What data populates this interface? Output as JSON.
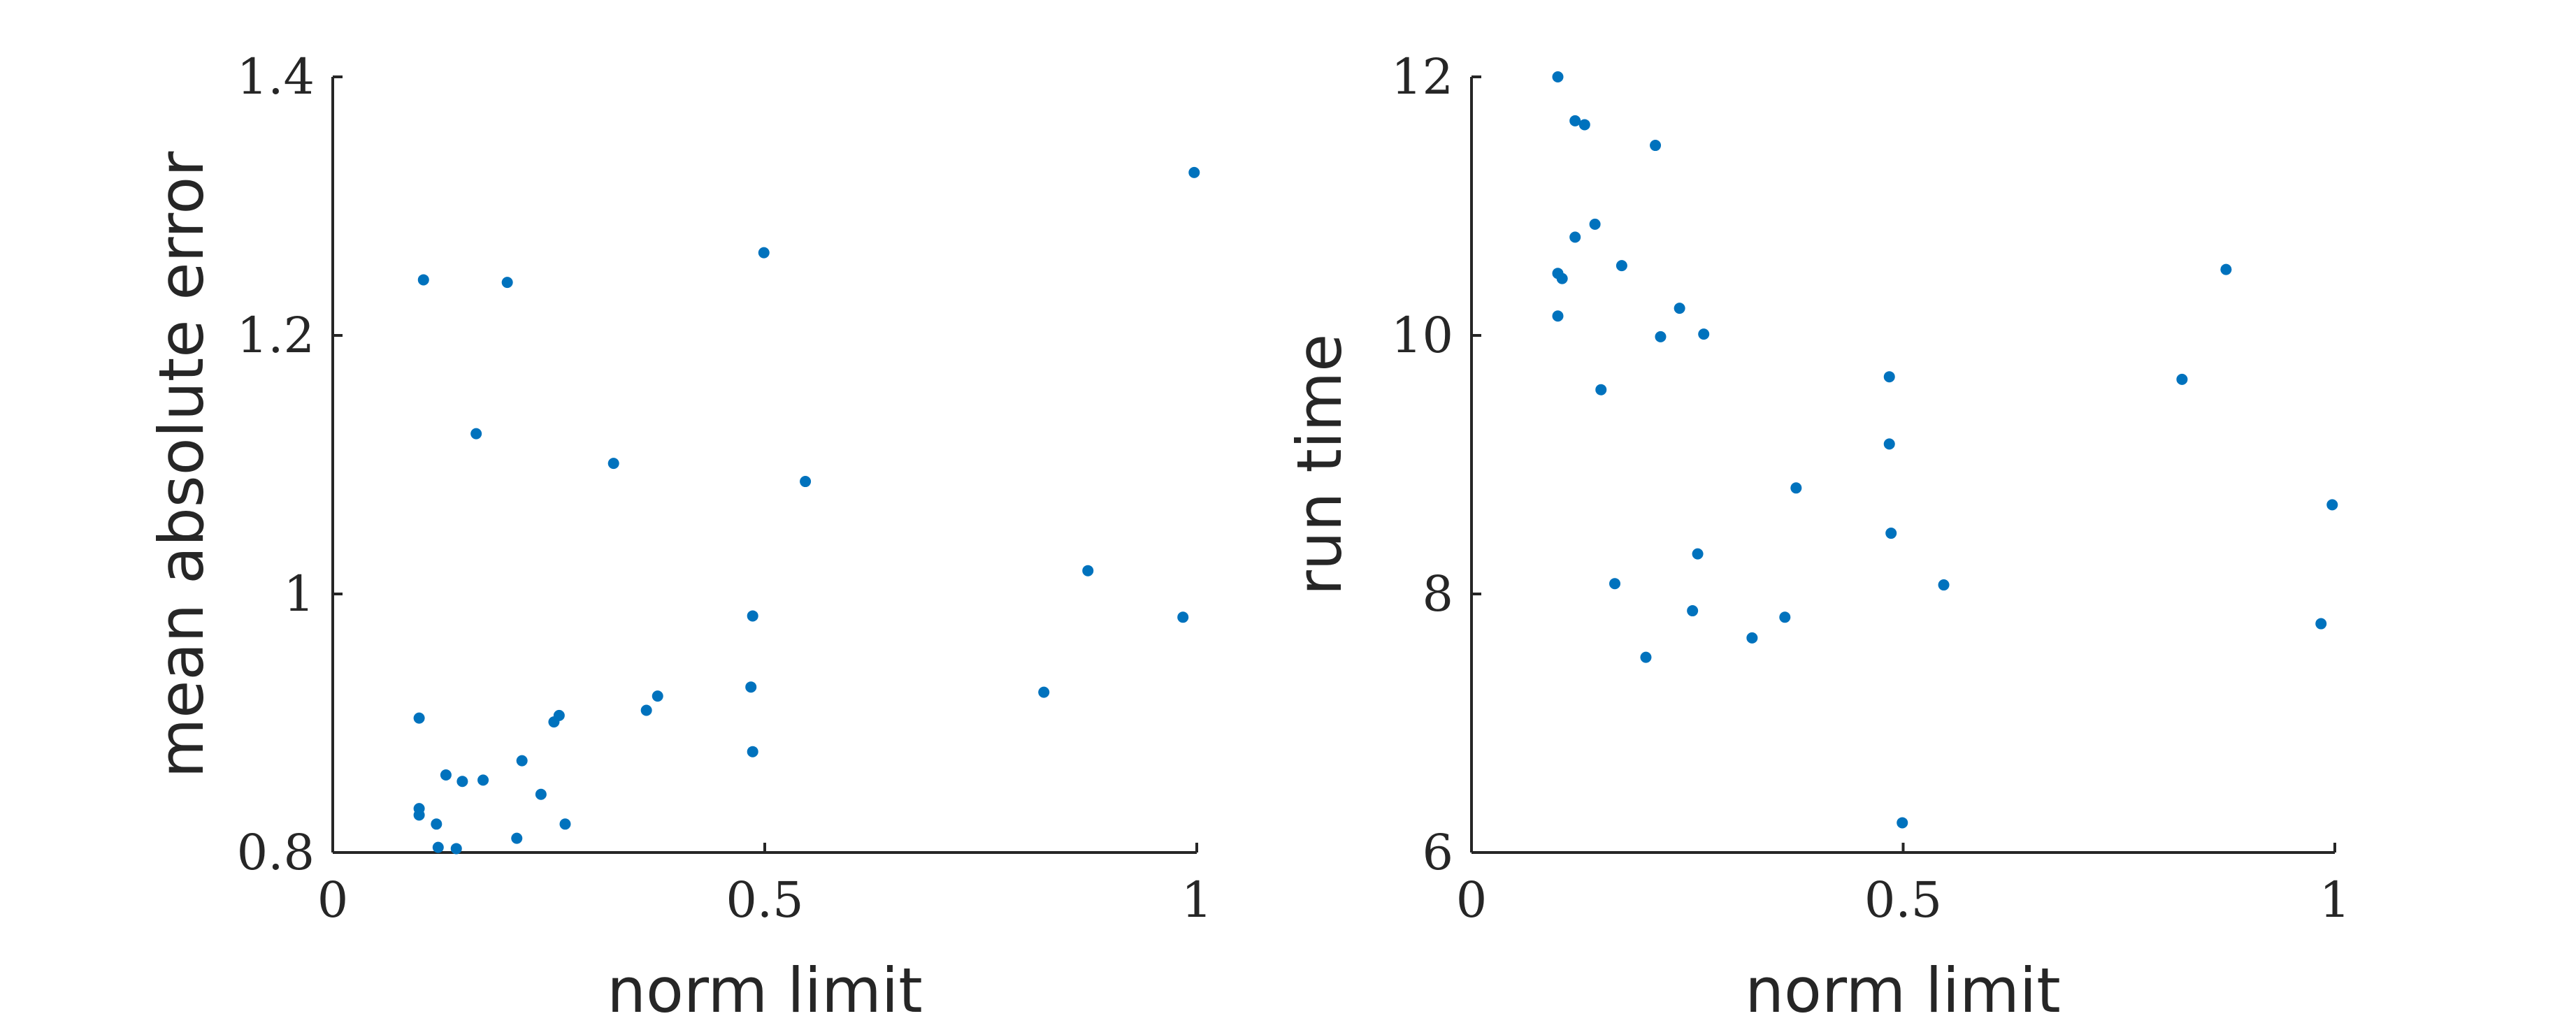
{
  "colors": {
    "points": "#0072bd",
    "axes": "#262626"
  },
  "chart_data": [
    {
      "type": "scatter",
      "xlabel": "norm limit",
      "ylabel": "mean absolute error",
      "xlim": [
        0,
        1
      ],
      "ylim": [
        0.8,
        1.4
      ],
      "xticks": [
        0,
        0.5,
        1
      ],
      "xtick_labels": [
        "0",
        "0.5",
        "1"
      ],
      "yticks": [
        0.8,
        1.0,
        1.2,
        1.4
      ],
      "ytick_labels": [
        "0.8",
        "1",
        "1.2",
        "1.4"
      ],
      "grid": false,
      "points": [
        [
          0.105,
          1.243
        ],
        [
          0.202,
          1.241
        ],
        [
          0.166,
          1.124
        ],
        [
          0.325,
          1.101
        ],
        [
          0.499,
          1.264
        ],
        [
          0.547,
          1.087
        ],
        [
          0.997,
          1.326
        ],
        [
          0.874,
          1.018
        ],
        [
          0.984,
          0.982
        ],
        [
          0.486,
          0.983
        ],
        [
          0.484,
          0.928
        ],
        [
          0.823,
          0.924
        ],
        [
          0.376,
          0.921
        ],
        [
          0.363,
          0.91
        ],
        [
          0.262,
          0.906
        ],
        [
          0.256,
          0.901
        ],
        [
          0.1,
          0.904
        ],
        [
          0.486,
          0.878
        ],
        [
          0.219,
          0.871
        ],
        [
          0.131,
          0.86
        ],
        [
          0.15,
          0.855
        ],
        [
          0.174,
          0.856
        ],
        [
          0.241,
          0.845
        ],
        [
          0.1,
          0.834
        ],
        [
          0.1,
          0.829
        ],
        [
          0.12,
          0.822
        ],
        [
          0.269,
          0.822
        ],
        [
          0.213,
          0.811
        ],
        [
          0.122,
          0.804
        ],
        [
          0.143,
          0.803
        ]
      ]
    },
    {
      "type": "scatter",
      "xlabel": "norm limit",
      "ylabel": "run time",
      "xlim": [
        0,
        1
      ],
      "ylim": [
        6,
        12
      ],
      "xticks": [
        0,
        0.5,
        1
      ],
      "xtick_labels": [
        "0",
        "0.5",
        "1"
      ],
      "yticks": [
        6,
        8,
        10,
        12
      ],
      "ytick_labels": [
        "6",
        "8",
        "10",
        "12"
      ],
      "grid": false,
      "points": [
        [
          0.1,
          12.0
        ],
        [
          0.12,
          11.66
        ],
        [
          0.131,
          11.63
        ],
        [
          0.213,
          11.47
        ],
        [
          0.143,
          10.86
        ],
        [
          0.12,
          10.76
        ],
        [
          0.174,
          10.54
        ],
        [
          0.1,
          10.48
        ],
        [
          0.105,
          10.44
        ],
        [
          0.874,
          10.51
        ],
        [
          0.241,
          10.21
        ],
        [
          0.1,
          10.15
        ],
        [
          0.219,
          9.99
        ],
        [
          0.269,
          10.01
        ],
        [
          0.484,
          9.68
        ],
        [
          0.823,
          9.66
        ],
        [
          0.15,
          9.58
        ],
        [
          0.484,
          9.16
        ],
        [
          0.376,
          8.82
        ],
        [
          0.997,
          8.69
        ],
        [
          0.486,
          8.47
        ],
        [
          0.262,
          8.31
        ],
        [
          0.547,
          8.07
        ],
        [
          0.166,
          8.08
        ],
        [
          0.256,
          7.87
        ],
        [
          0.363,
          7.82
        ],
        [
          0.984,
          7.77
        ],
        [
          0.325,
          7.66
        ],
        [
          0.202,
          7.51
        ],
        [
          0.499,
          6.23
        ]
      ]
    }
  ]
}
